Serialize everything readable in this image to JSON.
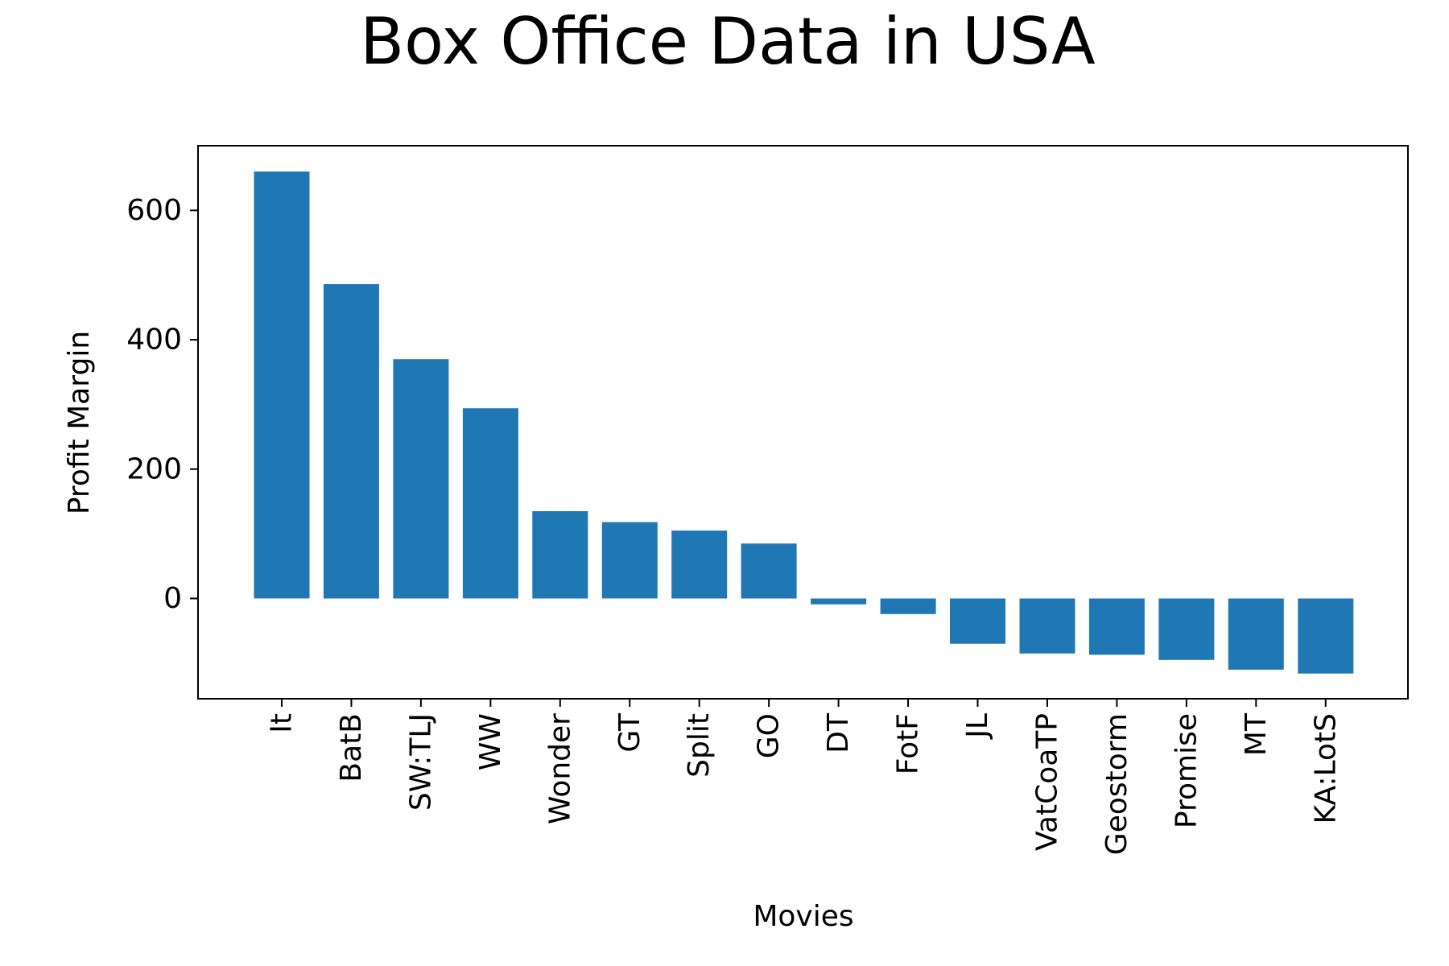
{
  "chart_data": {
    "type": "bar",
    "title": "Box Office Data in USA",
    "xlabel": "Movies",
    "ylabel": "Profit Margin",
    "categories": [
      "It",
      "BatB",
      "SW:TLJ",
      "WW",
      "Wonder",
      "GT",
      "Split",
      "GO",
      "DT",
      "FotF",
      "JL",
      "VatCoaTP",
      "Geostorm",
      "Promise",
      "MT",
      "KA:LotS"
    ],
    "values": [
      660,
      486,
      370,
      294,
      135,
      118,
      105,
      85,
      -9,
      -24,
      -70,
      -85,
      -87,
      -95,
      -110,
      -116
    ],
    "ylim": [
      -155,
      700
    ],
    "yticks": [
      0,
      200,
      400,
      600
    ],
    "grid": false,
    "bar_color": "#1f77b4"
  }
}
